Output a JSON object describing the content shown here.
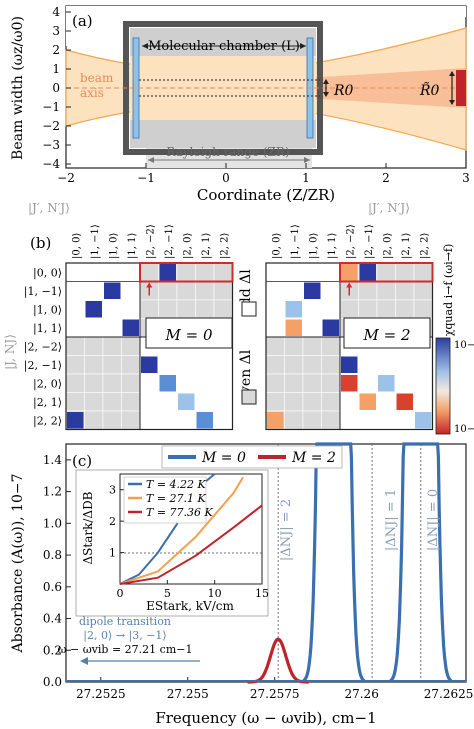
{
  "panel_a": {
    "label": "(a)",
    "ylabel": "Beam width (ωz/ω0)",
    "xlabel": "Coordinate (Z/ZR)",
    "x_ticks": [
      "−2",
      "−1",
      "0",
      "1",
      "2",
      "3"
    ],
    "y_ticks": [
      "4",
      "3",
      "2",
      "1",
      "0",
      "−1",
      "−2",
      "−3",
      "−4"
    ],
    "chamber_label": "Molecular chamber (L)",
    "beam_label": "beam",
    "axis_label": "axis",
    "rayleigh_label": "Rayleigh range (ZR)",
    "r0_label": "R0",
    "r0_tilde_label": "R̃0",
    "chart_data": {
      "type": "line",
      "title": "",
      "xlabel": "Coordinate (Z/Z_R)",
      "ylabel": "Beam width (ω_Z/ω_0)",
      "xlim": [
        -2,
        3
      ],
      "ylim": [
        -4,
        4
      ],
      "series": [
        {
          "x": [
            -2,
            -1.5,
            -1,
            -0.5,
            0,
            0.5,
            1,
            1.5,
            2,
            2.5,
            3
          ],
          "values": [
            2.24,
            1.8,
            1.41,
            1.12,
            1.0,
            1.12,
            1.41,
            1.8,
            2.24,
            2.69,
            3.16
          ]
        }
      ]
    }
  },
  "panel_b": {
    "label": "(b)",
    "col_header": "|J′, N′J⟩",
    "col_header_right": "|J′, N′J⟩",
    "row_header": "|J, NJ⟩",
    "col_states": [
      "|0, 0⟩",
      "|1, −1⟩",
      "|1, 0⟩",
      "|1, 1⟩",
      "|2, −2⟩",
      "|2, −1⟩",
      "|2, 0⟩",
      "|2, 1⟩",
      "|2, 2⟩"
    ],
    "row_states": [
      "|0, 0⟩",
      "|1, −1⟩",
      "|1, 0⟩",
      "|1, 1⟩",
      "|2, −2⟩",
      "|2, −1⟩",
      "|2, 0⟩",
      "|2, 1⟩",
      "|2, 2⟩"
    ],
    "m0_label": "M = 0",
    "m2_label": "M = 2",
    "odd_label": "odd Δl",
    "even_label": "even Δl",
    "colorbar_top": "10−5",
    "colorbar_bottom": "10−8",
    "colorbar_label": "χquad i→f (ωi→f)",
    "cells_m0": [
      [
        0,
        5,
        "dark"
      ],
      [
        1,
        2,
        "dark"
      ],
      [
        2,
        1,
        "dark"
      ],
      [
        3,
        3,
        "dark"
      ],
      [
        5,
        4,
        "dark"
      ],
      [
        6,
        5,
        "mid"
      ],
      [
        7,
        6,
        "light"
      ],
      [
        8,
        0,
        "dark"
      ],
      [
        8,
        7,
        "mid"
      ]
    ],
    "cells_m2": [
      [
        0,
        4,
        "orange"
      ],
      [
        0,
        5,
        "dark"
      ],
      [
        1,
        2,
        "dark"
      ],
      [
        2,
        1,
        "light"
      ],
      [
        3,
        1,
        "orange"
      ],
      [
        3,
        3,
        "dark"
      ],
      [
        5,
        4,
        "dark"
      ],
      [
        6,
        4,
        "red"
      ],
      [
        6,
        6,
        "light"
      ],
      [
        7,
        5,
        "orange"
      ],
      [
        7,
        7,
        "red"
      ],
      [
        8,
        0,
        "orange"
      ],
      [
        8,
        8,
        "light"
      ]
    ]
  },
  "panel_c": {
    "label": "(c)",
    "ylabel": "Absorbance (A(ω)), 10−7",
    "xlabel": "Frequency (ω − ωvib), cm−1",
    "x_ticks": [
      "27.2525",
      "27.255",
      "27.2575",
      "27.26",
      "27.2625"
    ],
    "y_ticks": [
      "0.0",
      "0.2",
      "0.4",
      "0.6",
      "0.8",
      "1.0",
      "1.2",
      "1.4"
    ],
    "legend_m0": "M = 0",
    "legend_m2": "M = 2",
    "dn2": "|ΔNJ| = 2",
    "dn1": "|ΔNJ| = 1",
    "dn0": "|ΔNJ| = 0",
    "dipole_1": "dipole transition",
    "dipole_2": "|2, 0⟩ → |3, −1⟩",
    "dipole_3": "ω − ωvib = 27.21 cm−1",
    "colors": {
      "m0": "#3a6fb0",
      "m2": "#c0232a"
    },
    "chart_data": {
      "type": "line",
      "xlabel": "Frequency (ω − ω_vib), cm^-1",
      "ylabel": "Absorbance (A(ω)), 10^-7",
      "xlim": [
        27.2515,
        27.263
      ],
      "ylim": [
        0,
        1.5
      ],
      "series": [
        {
          "name": "M = 0",
          "peaks": [
            {
              "x": 27.2592,
              "y": "off-scale"
            },
            {
              "x": 27.2617,
              "y": "off-scale"
            }
          ]
        },
        {
          "name": "M = 2",
          "peaks": [
            {
              "x": 27.2576,
              "y": 0.27
            }
          ]
        }
      ],
      "vlines": [
        27.2576,
        27.2603,
        27.2617
      ]
    },
    "inset": {
      "ylabel": "ΔStark/ΔDB",
      "xlabel": "EStark, kV/cm",
      "x_ticks": [
        "0",
        "5",
        "10",
        "15"
      ],
      "y_ticks": [
        "1",
        "2",
        "3"
      ],
      "legend": [
        {
          "label": "T = 4.22 K",
          "color": "#3a6fb0"
        },
        {
          "label": "T = 27.1 K",
          "color": "#f5a04a"
        },
        {
          "label": "T = 77.36 K",
          "color": "#c0232a"
        }
      ],
      "chart_data": {
        "type": "line",
        "xlim": [
          0,
          15
        ],
        "ylim": [
          0,
          3.5
        ],
        "series": [
          {
            "name": "T = 4.22 K",
            "x": [
              0,
              2,
              4,
              6,
              8,
              10
            ],
            "values": [
              0,
              0.3,
              1.0,
              1.9,
              3.0,
              3.6
            ]
          },
          {
            "name": "T = 27.1 K",
            "x": [
              0,
              4,
              8,
              12,
              13
            ],
            "values": [
              0,
              0.4,
              1.5,
              2.9,
              3.4
            ]
          },
          {
            "name": "T = 77.36 K",
            "x": [
              0,
              4,
              8,
              12,
              15
            ],
            "values": [
              0,
              0.2,
              0.9,
              1.8,
              2.5
            ]
          }
        ]
      }
    }
  }
}
